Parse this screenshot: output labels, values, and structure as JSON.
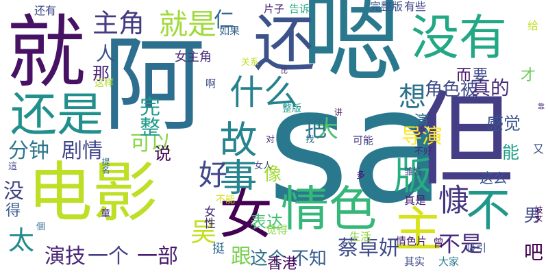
{
  "words": [
    {
      "text": "sa",
      "color": "#2a788e",
      "vertical": false
    },
    {
      "text": "嗯",
      "color": "#2a788e",
      "vertical": false
    },
    {
      "text": "阿",
      "color": "#2d6f8e",
      "vertical": false
    },
    {
      "text": "但",
      "color": "#433e85",
      "vertical": false
    },
    {
      "text": "就",
      "color": "#471164",
      "vertical": false
    },
    {
      "text": "电影",
      "color": "#bddf26",
      "vertical": false
    },
    {
      "text": "还",
      "color": "#3b528b",
      "vertical": false
    },
    {
      "text": "没有",
      "color": "#22a884",
      "vertical": false
    },
    {
      "text": "还是",
      "color": "#21908d",
      "vertical": false
    },
    {
      "text": "女",
      "color": "#440154",
      "vertical": false
    },
    {
      "text": "情色",
      "color": "#35b779",
      "vertical": false
    },
    {
      "text": "主",
      "color": "#d8e219",
      "vertical": false
    },
    {
      "text": "不",
      "color": "#1f988b",
      "vertical": false
    },
    {
      "text": "版",
      "color": "#27ad81",
      "vertical": false
    },
    {
      "text": "故事",
      "color": "#25848e",
      "vertical": true
    },
    {
      "text": "好",
      "color": "#3f4788",
      "vertical": false
    },
    {
      "text": "什么",
      "color": "#26818e",
      "vertical": false
    },
    {
      "text": "主角",
      "color": "#443a83",
      "vertical": false
    },
    {
      "text": "就是",
      "color": "#a0da39",
      "vertical": false
    },
    {
      "text": "想",
      "color": "#2c728e",
      "vertical": true
    },
    {
      "text": "吴",
      "color": "#c2df23",
      "vertical": false
    },
    {
      "text": "慷",
      "color": "#453581",
      "vertical": false
    },
    {
      "text": "太",
      "color": "#228c8d",
      "vertical": false
    },
    {
      "text": "仁",
      "color": "#31688e",
      "vertical": false
    },
    {
      "text": "剧情",
      "color": "#404688",
      "vertical": false
    },
    {
      "text": "分钟",
      "color": "#2a768e",
      "vertical": false
    },
    {
      "text": "可以",
      "color": "#86d549",
      "vertical": false
    },
    {
      "text": "角色被",
      "color": "#3e4a89",
      "vertical": false
    },
    {
      "text": "真的",
      "color": "#472d7b",
      "vertical": false
    },
    {
      "text": "人",
      "color": "#3b528b",
      "vertical": false
    },
    {
      "text": "那",
      "color": "#482475",
      "vertical": false
    },
    {
      "text": "不是",
      "color": "#482878",
      "vertical": false
    },
    {
      "text": "一个",
      "color": "#433e85",
      "vertical": false
    },
    {
      "text": "一部",
      "color": "#481b6d",
      "vertical": false
    },
    {
      "text": "演技",
      "color": "#482576",
      "vertical": false
    },
    {
      "text": "蔡卓妍",
      "color": "#3e4a89",
      "vertical": false
    },
    {
      "text": "跟",
      "color": "#7ad151",
      "vertical": false
    },
    {
      "text": "这个",
      "color": "#2d718e",
      "vertical": false
    },
    {
      "text": "不知",
      "color": "#355f8d",
      "vertical": false
    },
    {
      "text": "香港",
      "color": "#46085c",
      "vertical": false
    },
    {
      "text": "感觉",
      "color": "#3a548c",
      "vertical": false
    },
    {
      "text": "导演",
      "color": "#fde725",
      "vertical": false
    },
    {
      "text": "能",
      "color": "#1fa188",
      "vertical": false
    },
    {
      "text": "男",
      "color": "#3e4989",
      "vertical": false
    },
    {
      "text": "吧",
      "color": "#440154",
      "vertical": false
    },
    {
      "text": "说",
      "color": "#440154",
      "vertical": false
    },
    {
      "text": "像",
      "color": "#a5db36",
      "vertical": false
    },
    {
      "text": "大",
      "color": "#4ac16d",
      "vertical": false
    },
    {
      "text": "把",
      "color": "#2c738e",
      "vertical": false
    },
    {
      "text": "完整",
      "color": "#1e9b8a",
      "vertical": true
    },
    {
      "text": "表达",
      "color": "#44bf70",
      "vertical": false
    },
    {
      "text": "女主角",
      "color": "#472a7a",
      "vertical": false
    },
    {
      "text": "没",
      "color": "#414487",
      "vertical": false
    },
    {
      "text": "得",
      "color": "#365d8d",
      "vertical": true
    },
    {
      "text": "这么",
      "color": "#3a548c",
      "vertical": false
    },
    {
      "text": "要",
      "color": "#3f4889",
      "vertical": false
    },
    {
      "text": "演",
      "color": "#2e6f8e",
      "vertical": false
    },
    {
      "text": "而",
      "color": "#471365",
      "vertical": false
    },
    {
      "text": "才",
      "color": "#6ccd5a",
      "vertical": false
    },
    {
      "text": "女性",
      "color": "#472c7a",
      "vertical": true
    },
    {
      "text": "挺",
      "color": "#2f6c8e",
      "vertical": false
    },
    {
      "text": "可能",
      "color": "#453882",
      "vertical": false
    },
    {
      "text": "还有",
      "color": "#3e4989",
      "vertical": false
    },
    {
      "text": "片子",
      "color": "#482374",
      "vertical": false
    },
    {
      "text": "告诉",
      "color": "#25ab82",
      "vertical": false
    },
    {
      "text": "完整版",
      "color": "#39558c",
      "vertical": false
    },
    {
      "text": "有些",
      "color": "#404588",
      "vertical": false
    },
    {
      "text": "如果",
      "color": "#33628d",
      "vertical": false
    },
    {
      "text": "关系",
      "color": "#c0df25",
      "vertical": false
    },
    {
      "text": "这样",
      "color": "#b2dd2d",
      "vertical": false
    },
    {
      "text": "啊",
      "color": "#3c4f8a",
      "vertical": false
    },
    {
      "text": "比",
      "color": "#481f70",
      "vertical": false
    },
    {
      "text": "整版",
      "color": "#1f998a",
      "vertical": false
    },
    {
      "text": "讲",
      "color": "#481769",
      "vertical": false
    },
    {
      "text": "找",
      "color": "#2d718e",
      "vertical": false
    },
    {
      "text": "对",
      "color": "#482979",
      "vertical": false
    },
    {
      "text": "不好",
      "color": "#482475",
      "vertical": false
    },
    {
      "text": "女人",
      "color": "#3f4889",
      "vertical": false
    },
    {
      "text": "多",
      "color": "#4e027e",
      "vertical": false
    },
    {
      "text": "雏妓",
      "color": "#3e4a89",
      "vertical": false
    },
    {
      "text": "又",
      "color": "#3d4e8a",
      "vertical": false
    },
    {
      "text": "靠",
      "color": "#482475",
      "vertical": false
    },
    {
      "text": "给",
      "color": "#c2df23",
      "vertical": false
    },
    {
      "text": "不能",
      "color": "#d2e21b",
      "vertical": false
    },
    {
      "text": "真是",
      "color": "#482173",
      "vertical": false
    },
    {
      "text": "觉得",
      "color": "#8bd646",
      "vertical": false
    },
    {
      "text": "生活",
      "color": "#90d743",
      "vertical": false
    },
    {
      "text": "情色片",
      "color": "#482173",
      "vertical": false
    },
    {
      "text": "曾",
      "color": "#481769",
      "vertical": false
    },
    {
      "text": "吸引",
      "color": "#3a548c",
      "vertical": false
    },
    {
      "text": "其实",
      "color": "#3f4788",
      "vertical": false
    },
    {
      "text": "大家",
      "color": "#297b8e",
      "vertical": false
    },
    {
      "text": "童",
      "color": "#472f7d",
      "vertical": false
    },
    {
      "text": "個",
      "color": "#2d708e",
      "vertical": false
    },
    {
      "text": "這",
      "color": "#3f4788",
      "vertical": false
    },
    {
      "text": "提名",
      "color": "#31688e",
      "vertical": true
    },
    {
      "text": "妓女",
      "color": "#440154",
      "vertical": true
    }
  ]
}
